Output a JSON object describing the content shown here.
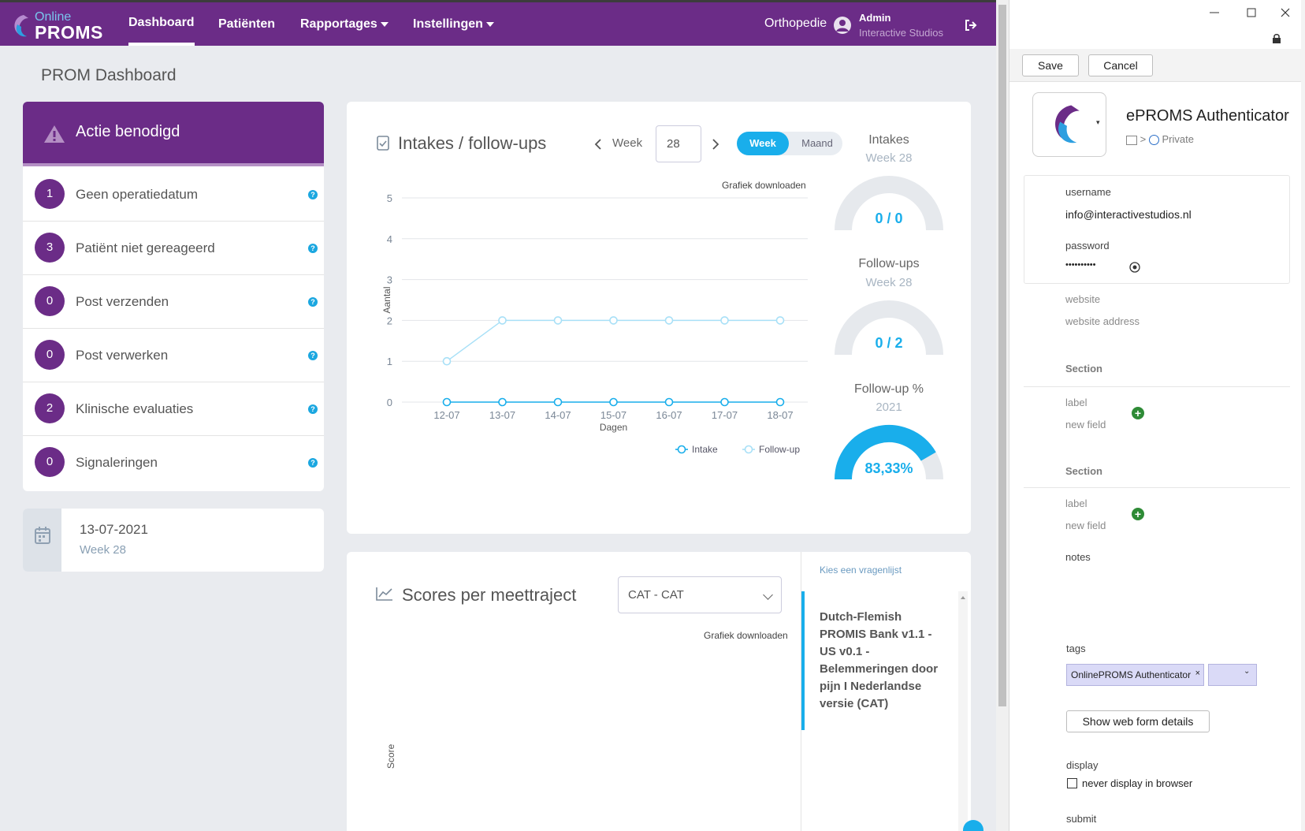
{
  "topbar": {
    "logo_line1": "Online",
    "logo_line2": "PROMS",
    "nav": [
      "Dashboard",
      "Patiënten",
      "Rapportages",
      "Instellingen"
    ],
    "department": "Orthopedie",
    "user_name": "Admin",
    "user_org": "Interactive Studios"
  },
  "page_title": "PROM Dashboard",
  "action": {
    "title": "Actie benodigd",
    "items": [
      {
        "count": "1",
        "label": "Geen operatiedatum"
      },
      {
        "count": "3",
        "label": "Patiënt niet gereageerd"
      },
      {
        "count": "0",
        "label": "Post verzenden"
      },
      {
        "count": "0",
        "label": "Post verwerken"
      },
      {
        "count": "2",
        "label": "Klinische evaluaties"
      },
      {
        "count": "0",
        "label": "Signaleringen"
      }
    ],
    "help": "?"
  },
  "date_card": {
    "date": "13-07-2021",
    "week": "Week 28"
  },
  "intakes": {
    "title": "Intakes / follow-ups",
    "week_label": "Week",
    "week_value": "28",
    "toggle_week": "Week",
    "toggle_month": "Maand",
    "download": "Grafiek downloaden",
    "gauges": [
      {
        "title": "Intakes",
        "sub": "Week 28",
        "label": "0 / 0",
        "fraction": 0
      },
      {
        "title": "Follow-ups",
        "sub": "Week 28",
        "label": "0 / 2",
        "fraction": 0
      },
      {
        "title": "Follow-up %",
        "sub": "2021",
        "label": "83,33%",
        "fraction": 0.8333
      }
    ]
  },
  "chart_data": {
    "type": "line",
    "categories": [
      "12-07",
      "13-07",
      "14-07",
      "15-07",
      "16-07",
      "17-07",
      "18-07"
    ],
    "series": [
      {
        "name": "Intake",
        "values": [
          0,
          0,
          0,
          0,
          0,
          0,
          0
        ],
        "color": "#19aeeb"
      },
      {
        "name": "Follow-up",
        "values": [
          1,
          2,
          2,
          2,
          2,
          2,
          2
        ],
        "color": "#a8e0f7"
      }
    ],
    "xlabel": "Dagen",
    "ylabel": "Aantal",
    "ylim": [
      0,
      5
    ],
    "yticks": [
      0,
      1,
      2,
      3,
      4,
      5
    ],
    "grid": true,
    "legend": "bottom-right"
  },
  "scores": {
    "title": "Scores per meettraject",
    "select_value": "CAT - CAT",
    "download": "Grafiek downloaden",
    "ylabel": "Score",
    "list_header": "Kies een vragenlijst",
    "questionnaire": "Dutch-Flemish PROMIS Bank v1.1 - US v0.1 - Belemmeringen door pijn I Nederlandse versie (CAT)"
  },
  "pm": {
    "save": "Save",
    "cancel": "Cancel",
    "entry_title": "ePROMS Authenticator",
    "vault_sep": ">",
    "vault": "Private",
    "username_label": "username",
    "username_value": "info@interactivestudios.nl",
    "password_label": "password",
    "password_value": "••••••••••",
    "website_label": "website",
    "website_placeholder": "website address",
    "section1": "Section",
    "label1": "label",
    "newfield1": "new field",
    "section2": "Section",
    "label2": "label",
    "newfield2": "new field",
    "notes_label": "notes",
    "tags_label": "tags",
    "tag_value": "OnlinePROMS Authenticator",
    "tag_remove": "×",
    "webform_button": "Show web form details",
    "display_label": "display",
    "never_display": "never display in browser",
    "submit_label": "submit"
  }
}
